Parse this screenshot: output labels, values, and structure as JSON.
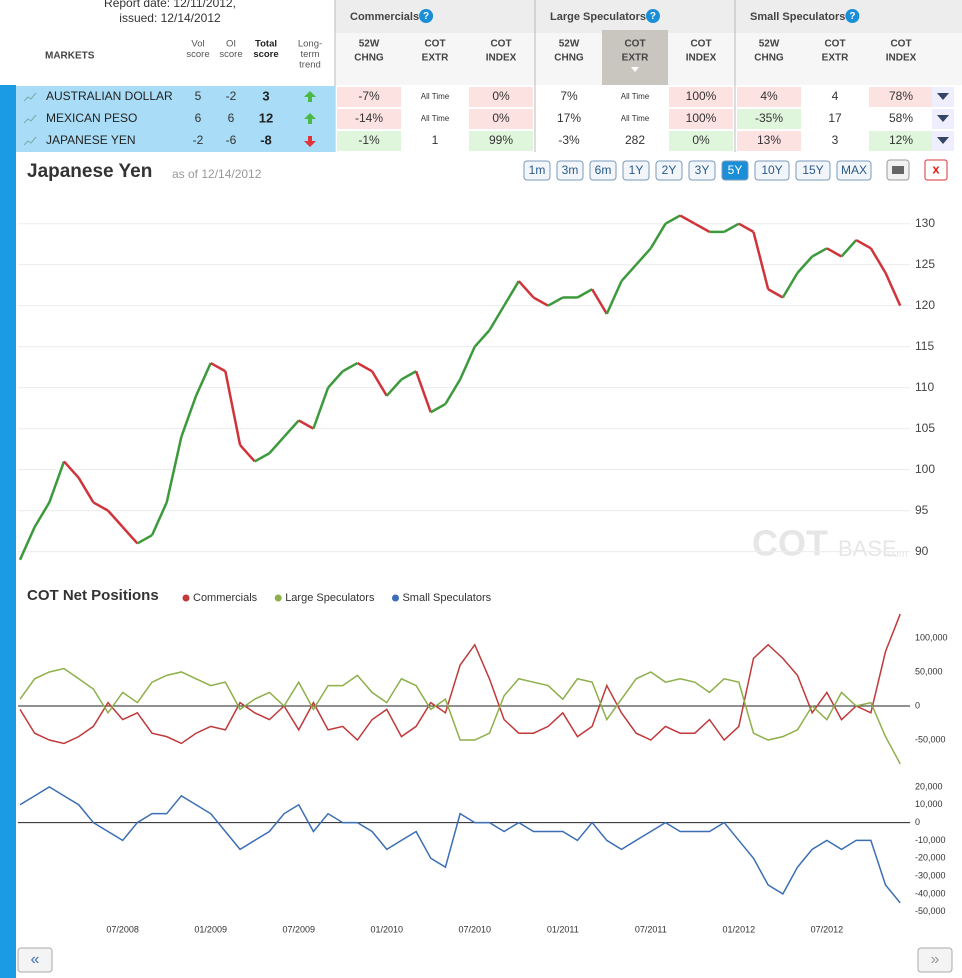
{
  "header": {
    "report_date": "Report date: 12/11/2012,",
    "issued": "issued: 12/14/2012"
  },
  "table": {
    "markets_label": "MARKETS",
    "score_headers": [
      [
        "Vol",
        "score"
      ],
      [
        "OI",
        "score"
      ],
      [
        "Total",
        "score"
      ],
      [
        "Long-",
        "term",
        "trend"
      ]
    ],
    "groups": [
      "Commercials",
      "Large Speculators",
      "Small Speculators"
    ],
    "group_columns": [
      [
        "52W",
        "CHNG"
      ],
      [
        "COT",
        "EXTR"
      ],
      [
        "COT",
        "INDEX"
      ]
    ],
    "sorted_group": 1,
    "sorted_column": 1,
    "rows": [
      {
        "name": "AUSTRALIAN DOLLAR",
        "vol": "5",
        "oi": "-2",
        "total": "3",
        "trend": "up",
        "cells": [
          {
            "text": "-7%",
            "tone": "red"
          },
          {
            "text": "All Time",
            "tone": "none"
          },
          {
            "text": "0%",
            "tone": "red"
          },
          {
            "text": "7%",
            "tone": "none"
          },
          {
            "text": "All Time",
            "tone": "none"
          },
          {
            "text": "100%",
            "tone": "red"
          },
          {
            "text": "4%",
            "tone": "red"
          },
          {
            "text": "4",
            "tone": "none"
          },
          {
            "text": "78%",
            "tone": "red"
          }
        ]
      },
      {
        "name": "MEXICAN PESO",
        "vol": "6",
        "oi": "6",
        "total": "12",
        "trend": "up",
        "cells": [
          {
            "text": "-14%",
            "tone": "red"
          },
          {
            "text": "All Time",
            "tone": "none"
          },
          {
            "text": "0%",
            "tone": "red"
          },
          {
            "text": "17%",
            "tone": "none"
          },
          {
            "text": "All Time",
            "tone": "none"
          },
          {
            "text": "100%",
            "tone": "red"
          },
          {
            "text": "-35%",
            "tone": "green"
          },
          {
            "text": "17",
            "tone": "none"
          },
          {
            "text": "58%",
            "tone": "none"
          }
        ]
      },
      {
        "name": "JAPANESE YEN",
        "vol": "-2",
        "oi": "-6",
        "total": "-8",
        "trend": "down",
        "cells": [
          {
            "text": "-1%",
            "tone": "green"
          },
          {
            "text": "1",
            "tone": "none"
          },
          {
            "text": "99%",
            "tone": "green"
          },
          {
            "text": "-3%",
            "tone": "none"
          },
          {
            "text": "282",
            "tone": "none"
          },
          {
            "text": "0%",
            "tone": "green"
          },
          {
            "text": "13%",
            "tone": "red"
          },
          {
            "text": "3",
            "tone": "none"
          },
          {
            "text": "12%",
            "tone": "green"
          }
        ]
      }
    ]
  },
  "panel": {
    "title": "Japanese Yen",
    "as_of": "as of 12/14/2012",
    "ranges": [
      "1m",
      "3m",
      "6m",
      "1Y",
      "2Y",
      "3Y",
      "5Y",
      "10Y",
      "15Y",
      "MAX"
    ],
    "active_range": "5Y",
    "close_button": "x",
    "watermark": [
      "COT",
      "BASE",
      ".com"
    ],
    "cot_title": "COT Net Positions",
    "prev": "«",
    "next": "»"
  },
  "chart_data": [
    {
      "type": "line",
      "up_color": "#3c9a3c",
      "down_color": "#d0333a",
      "grid": true,
      "values": [
        89,
        93,
        96,
        101,
        99,
        96,
        95,
        93,
        91,
        92,
        96,
        104,
        109,
        113,
        112,
        103,
        101,
        102,
        104,
        106,
        105,
        110,
        112,
        113,
        112,
        109,
        111,
        112,
        107,
        108,
        111,
        115,
        117,
        120,
        123,
        121,
        120,
        121,
        121,
        122,
        119,
        123,
        125,
        127,
        130,
        131,
        130,
        129,
        129,
        130,
        129,
        122,
        121,
        124,
        126,
        127,
        126,
        128,
        127,
        124,
        120
      ],
      "ylim": [
        88,
        133.5
      ],
      "yticks": [
        90,
        95,
        100,
        105,
        110,
        115,
        120,
        125,
        130
      ]
    },
    {
      "type": "line",
      "series": [
        {
          "name": "Commercials",
          "color": "#c0393b",
          "values": [
            -5000,
            -40000,
            -50000,
            -55000,
            -45000,
            -30000,
            5000,
            -20000,
            -10000,
            -40000,
            -45000,
            -55000,
            -40000,
            -30000,
            -35000,
            5000,
            -10000,
            -20000,
            0,
            -35000,
            5000,
            -35000,
            -30000,
            -50000,
            -20000,
            -5000,
            -45000,
            -30000,
            5000,
            -10000,
            60000,
            90000,
            40000,
            -20000,
            -40000,
            -40000,
            -30000,
            -10000,
            -45000,
            -30000,
            30000,
            -10000,
            -40000,
            -50000,
            -30000,
            -40000,
            -40000,
            -20000,
            -50000,
            -30000,
            70000,
            90000,
            70000,
            45000,
            -10000,
            20000,
            -20000,
            0,
            -10000,
            80000,
            135000
          ]
        },
        {
          "name": "Large Speculators",
          "color": "#8db04a",
          "values": [
            10000,
            40000,
            50000,
            55000,
            40000,
            25000,
            -10000,
            20000,
            5000,
            35000,
            45000,
            50000,
            40000,
            30000,
            35000,
            -5000,
            10000,
            20000,
            0,
            35000,
            -5000,
            30000,
            30000,
            45000,
            20000,
            5000,
            40000,
            30000,
            -5000,
            10000,
            -50000,
            -50000,
            -40000,
            15000,
            40000,
            35000,
            30000,
            10000,
            40000,
            35000,
            -20000,
            10000,
            40000,
            50000,
            35000,
            40000,
            35000,
            20000,
            40000,
            35000,
            -40000,
            -50000,
            -45000,
            -35000,
            0,
            -20000,
            20000,
            0,
            5000,
            -45000,
            -85000
          ]
        },
        {
          "name": "Small Speculators",
          "color": "#3b6eb4"
        }
      ],
      "ylim": [
        -94000,
        141000
      ],
      "yticks": [
        {
          "value": 100000,
          "label": "100,000"
        },
        {
          "value": 50000,
          "label": "50,000"
        },
        0,
        {
          "value": -50000,
          "label": "-50,000"
        }
      ]
    },
    {
      "type": "line",
      "categories": [
        null,
        null,
        null,
        null,
        null,
        null,
        null,
        "07/2008",
        null,
        null,
        null,
        null,
        null,
        "01/2009",
        null,
        null,
        null,
        null,
        null,
        "07/2009",
        null,
        null,
        null,
        null,
        null,
        "01/2010",
        null,
        null,
        null,
        null,
        null,
        "07/2010",
        null,
        null,
        null,
        null,
        null,
        "01/2011",
        null,
        null,
        null,
        null,
        null,
        "07/2011",
        null,
        null,
        null,
        null,
        null,
        "01/2012",
        null,
        null,
        null,
        null,
        null,
        "07/2012",
        null,
        null,
        null,
        null,
        null
      ],
      "series": [
        {
          "color": "#3b6eb4",
          "values": [
            10000,
            15000,
            20000,
            15000,
            10000,
            0,
            -5000,
            -10000,
            0,
            5000,
            5000,
            15000,
            10000,
            5000,
            -5000,
            -15000,
            -10000,
            -5000,
            5000,
            10000,
            -5000,
            5000,
            0,
            0,
            -5000,
            -15000,
            -10000,
            -5000,
            -20000,
            -25000,
            5000,
            0,
            0,
            -5000,
            0,
            -5000,
            -5000,
            -5000,
            -10000,
            0,
            -10000,
            -15000,
            -10000,
            -5000,
            0,
            -5000,
            -5000,
            -5000,
            0,
            -10000,
            -20000,
            -35000,
            -40000,
            -25000,
            -15000,
            -10000,
            -15000,
            -10000,
            -10000,
            -35000,
            -45000
          ]
        }
      ],
      "ylim": [
        -53500,
        25000
      ],
      "yticks": [
        {
          "value": 20000,
          "label": "20,000"
        },
        {
          "value": 10000,
          "label": "10,000"
        },
        0,
        {
          "value": -10000,
          "label": "-10,000"
        },
        {
          "value": -20000,
          "label": "-20,000"
        },
        {
          "value": -30000,
          "label": "-30,000"
        },
        {
          "value": -40000,
          "label": "-40,000"
        },
        {
          "value": -50000,
          "label": "-50,000"
        }
      ]
    }
  ]
}
